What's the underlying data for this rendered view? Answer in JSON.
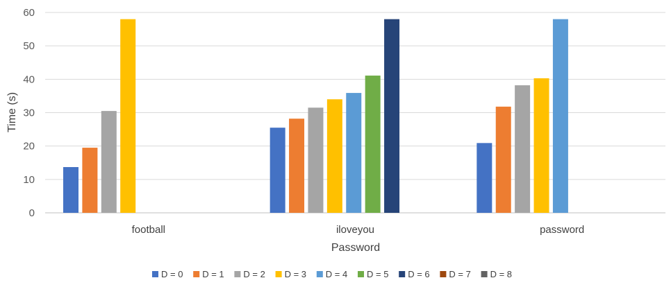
{
  "chart_data": {
    "type": "bar",
    "title": "",
    "xlabel": "Password",
    "ylabel": "Time (s)",
    "ylim": [
      0,
      60
    ],
    "yticks": [
      0,
      10,
      20,
      30,
      40,
      50,
      60
    ],
    "grid": true,
    "legend_position": "bottom",
    "categories": [
      "football",
      "iloveyou",
      "password"
    ],
    "series": [
      {
        "name": "D = 0",
        "color": "#4472C4",
        "values": [
          13.7,
          25.5,
          20.9
        ]
      },
      {
        "name": "D = 1",
        "color": "#ED7D31",
        "values": [
          19.5,
          28.2,
          31.8
        ]
      },
      {
        "name": "D = 2",
        "color": "#A5A5A5",
        "values": [
          30.5,
          31.5,
          38.2
        ]
      },
      {
        "name": "D = 3",
        "color": "#FFC000",
        "values": [
          58,
          34,
          40.3
        ]
      },
      {
        "name": "D = 4",
        "color": "#5B9BD5",
        "values": [
          null,
          35.9,
          58
        ]
      },
      {
        "name": "D = 5",
        "color": "#70AD47",
        "values": [
          null,
          41.1,
          null
        ]
      },
      {
        "name": "D = 6",
        "color": "#264478",
        "values": [
          null,
          58,
          null
        ]
      },
      {
        "name": "D = 7",
        "color": "#9E480E",
        "values": [
          null,
          null,
          null
        ]
      },
      {
        "name": "D = 8",
        "color": "#636363",
        "values": [
          null,
          null,
          null
        ]
      }
    ]
  }
}
